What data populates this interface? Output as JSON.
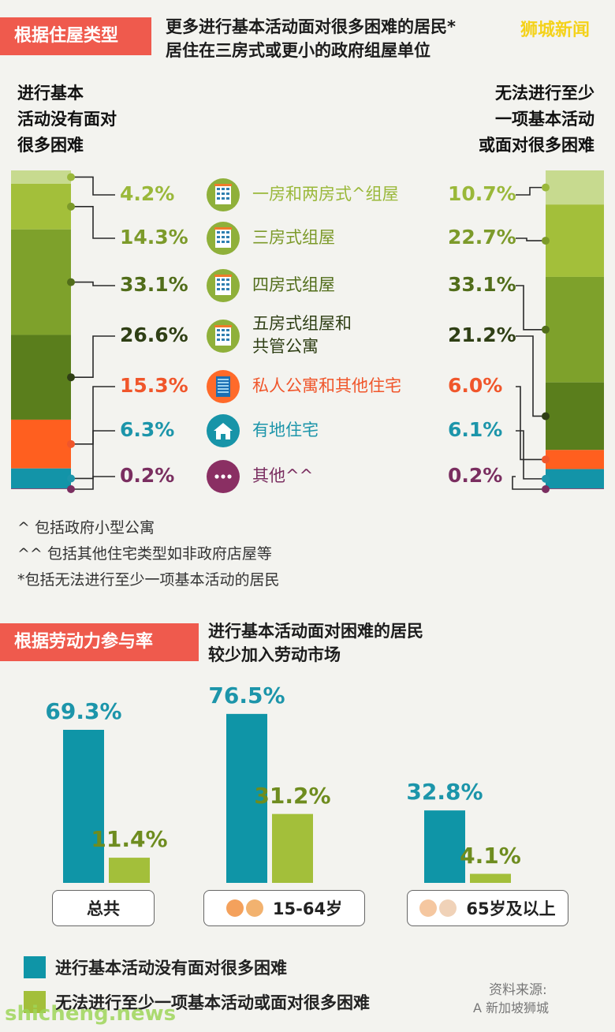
{
  "source_watermark": "狮城新闻",
  "section1": {
    "tag": "根据住屋类型",
    "headline_line1": "更多进行基本活动面对很多困难的居民*",
    "headline_line2": "居住在三房式或更小的政府组屋单位",
    "left_head": [
      "进行基本",
      "活动没有面对",
      "很多困难"
    ],
    "right_head": [
      "无法进行至少",
      "一项基本活动",
      "或面对很多困难"
    ]
  },
  "chart_data": [
    {
      "type": "bar",
      "subtype": "stacked-100",
      "orientation": "vertical",
      "categories": [
        "一房和两房式^组屋",
        "三房式组屋",
        "四房式组屋",
        "五房式组屋和共管公寓",
        "私人公寓和其他住宅",
        "有地住宅",
        "其他^^"
      ],
      "category_lines": [
        [
          "一房和两房式^组屋"
        ],
        [
          "三房式组屋"
        ],
        [
          "四房式组屋"
        ],
        [
          "五房式组屋和",
          "共管公寓"
        ],
        [
          "私人公寓和其他住宅"
        ],
        [
          "有地住宅"
        ],
        [
          "其他^^"
        ]
      ],
      "icons": [
        "hdb-flat-icon",
        "hdb-flat-icon",
        "hdb-flat-icon",
        "hdb-flat-icon",
        "condo-icon",
        "landed-house-icon",
        "ellipsis-icon"
      ],
      "series": [
        {
          "name": "进行基本活动没有面对很多困难",
          "values": [
            4.2,
            14.3,
            33.1,
            26.6,
            15.3,
            6.3,
            0.2
          ],
          "labels": [
            "4.2%",
            "14.3%",
            "33.1%",
            "26.6%",
            "15.3%",
            "6.3%",
            "0.2%"
          ]
        },
        {
          "name": "无法进行至少一项基本活动或面对很多困难",
          "values": [
            10.7,
            22.7,
            33.1,
            21.2,
            6.0,
            6.1,
            0.2
          ],
          "labels": [
            "10.7%",
            "22.7%",
            "33.1%",
            "21.2%",
            "6.0%",
            "6.1%",
            "0.2%"
          ]
        }
      ],
      "colors": [
        "#c7da8f",
        "#a3bf3a",
        "#7ea12b",
        "#5a7e1c",
        "#ff5f1f",
        "#1394a8",
        "#8a2f63"
      ],
      "label_colors": [
        "#9ab83a",
        "#7c9a2a",
        "#516d1a",
        "#2f3f15",
        "#f0562b",
        "#1c95aa",
        "#7a2e60"
      ]
    },
    {
      "type": "bar",
      "categories": [
        "总共",
        "15-64岁",
        "65岁及以上"
      ],
      "series": [
        {
          "name": "进行基本活动没有面对很多困难",
          "values": [
            69.3,
            76.5,
            32.8
          ],
          "labels": [
            "69.3%",
            "76.5%",
            "32.8%"
          ]
        },
        {
          "name": "无法进行至少一项基本活动或面对很多困难",
          "values": [
            11.4,
            31.2,
            4.1
          ],
          "labels": [
            "11.4%",
            "31.2%",
            "4.1%"
          ]
        }
      ],
      "colors": [
        "#0f95a7",
        "#a3bf3a"
      ],
      "label_colors": [
        "#1c95aa",
        "#6e8c1f"
      ]
    }
  ],
  "footnotes": [
    "^ 包括政府小型公寓",
    "^^ 包括其他住宅类型如非政府店屋等",
    "*包括无法进行至少一项基本活动的居民"
  ],
  "section2": {
    "tag": "根据劳动力参与率",
    "headline_line1": "进行基本活动面对困难的居民",
    "headline_line2": "较少加入劳动市场"
  },
  "legend": [
    {
      "label": "进行基本活动没有面对很多困难",
      "color": "#0f95a7"
    },
    {
      "label": "无法进行至少一项基本活动或面对很多困难",
      "color": "#a3bf3a"
    }
  ],
  "source_note": "资料来源:",
  "source_account": "A 新加坡狮城",
  "site_watermark": "shicheng.news"
}
